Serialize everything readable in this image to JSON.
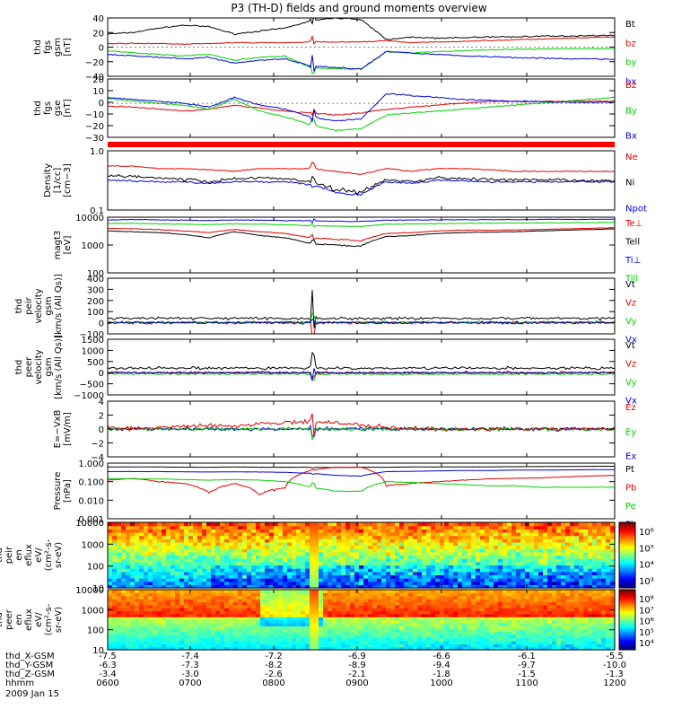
{
  "title": "P3 (TH-D) fields and ground moments overview",
  "ephemeris": {
    "rows": [
      {
        "label": "thd_X-GSM",
        "values": [
          "-7.5",
          "-7.4",
          "-7.2",
          "-6.9",
          "-6.6",
          "-6.1",
          "-5.5"
        ]
      },
      {
        "label": "thd_Y-GSM",
        "values": [
          "-6.3",
          "-7.3",
          "-8.2",
          "-8.9",
          "-9.4",
          "-9.7",
          "-10.0"
        ]
      },
      {
        "label": "thd_Z-GSM",
        "values": [
          "-3.4",
          "-3.0",
          "-2.6",
          "-2.1",
          "-1.8",
          "-1.5",
          "-1.3"
        ]
      },
      {
        "label": "hhmm",
        "values": [
          "0600",
          "0700",
          "0800",
          "0900",
          "1000",
          "1100",
          "1200"
        ]
      }
    ],
    "date": "2009 Jan 15"
  },
  "colors": {
    "black": "#000000",
    "red": "#e00000",
    "green": "#00d000",
    "blue": "#0000e0"
  },
  "chart_data": [
    {
      "type": "line",
      "ylabel_lines": [
        "thd",
        "fgs",
        "gsm",
        "[nT]"
      ],
      "ylim": [
        -40,
        40
      ],
      "y_ticks": [
        "40",
        "20",
        "0",
        "−20",
        "−40"
      ],
      "x_range_hhmm": [
        "0600",
        "1200"
      ],
      "series": [
        {
          "name": "Bt",
          "color": "#000000",
          "approx_values": [
            18,
            22,
            28,
            30,
            36,
            40,
            38,
            20,
            14,
            12,
            13,
            14,
            15,
            15,
            15,
            16,
            16
          ]
        },
        {
          "name": "bz",
          "color": "#e00000",
          "approx_values": [
            5,
            5,
            5,
            5,
            6,
            6,
            6,
            8,
            6,
            7,
            8,
            9,
            10,
            11,
            12,
            13,
            14
          ]
        },
        {
          "name": "by",
          "color": "#00d000",
          "approx_values": [
            -5,
            -8,
            -10,
            -12,
            -18,
            -28,
            -30,
            -5,
            -6,
            -5,
            -5,
            -4,
            -3,
            -3,
            -2,
            -2,
            -2
          ]
        },
        {
          "name": "bx",
          "color": "#0000e0",
          "approx_values": [
            -10,
            -12,
            -14,
            -16,
            -22,
            -26,
            -28,
            -6,
            -8,
            -10,
            -12,
            -13,
            -14,
            -15,
            -16,
            -16,
            -17
          ]
        }
      ],
      "legend": [
        {
          "text": "Bt",
          "color": "#000000"
        },
        {
          "text": "bz",
          "color": "#e00000"
        },
        {
          "text": "by",
          "color": "#00d000"
        },
        {
          "text": "bx",
          "color": "#0000e0"
        }
      ]
    },
    {
      "type": "line",
      "ylabel_lines": [
        "thd",
        "fgs",
        "gse",
        "[nT]"
      ],
      "ylim": [
        -35,
        25
      ],
      "y_ticks": [
        "20",
        "10",
        "0",
        "−10",
        "−20",
        "−30"
      ],
      "series": [
        {
          "name": "Bz",
          "color": "#e00000"
        },
        {
          "name": "By",
          "color": "#00d000"
        },
        {
          "name": "Bx",
          "color": "#0000e0"
        }
      ],
      "legend": [
        {
          "text": "Bz",
          "color": "#e00000"
        },
        {
          "text": "By",
          "color": "#00d000"
        },
        {
          "text": "Bx",
          "color": "#0000e0"
        }
      ]
    },
    {
      "type": "line",
      "ylabel_lines": [
        "Density",
        "[1/cc]",
        "[cm−3]"
      ],
      "scale": "log",
      "ylim": [
        0.1,
        1.0
      ],
      "y_ticks": [
        "1.0",
        "0.1"
      ],
      "series": [
        {
          "name": "Ne",
          "color": "#e00000"
        },
        {
          "name": "Ni",
          "color": "#000000"
        },
        {
          "name": "Npot",
          "color": "#0000e0"
        }
      ],
      "legend": [
        {
          "text": "Ne",
          "color": "#e00000"
        },
        {
          "text": "Ni",
          "color": "#000000"
        },
        {
          "text": "Npot",
          "color": "#0000e0"
        }
      ]
    },
    {
      "type": "line",
      "ylabel_lines": [
        "magt3",
        "[eV]"
      ],
      "scale": "log",
      "ylim": [
        100,
        10000
      ],
      "y_ticks": [
        "10000",
        "1000",
        "100"
      ],
      "series": [
        {
          "name": "Te⊥",
          "color": "#e00000"
        },
        {
          "name": "Te∥",
          "color": "#000000"
        },
        {
          "name": "Ti⊥",
          "color": "#0000e0"
        },
        {
          "name": "Ti∥",
          "color": "#00d000"
        }
      ],
      "legend": [
        {
          "text": "Te⊥",
          "color": "#e00000"
        },
        {
          "text": "Tell",
          "color": "#000000"
        },
        {
          "text": "Ti⊥",
          "color": "#0000e0"
        },
        {
          "text": "Till",
          "color": "#00d000"
        }
      ]
    },
    {
      "type": "line",
      "ylabel_lines": [
        "thd",
        "peir",
        "velocity",
        "gsm",
        "[km/s (All Qs)]"
      ],
      "ylim": [
        -100,
        400
      ],
      "y_ticks": [
        "400",
        "300",
        "200",
        "100",
        "0",
        "−100"
      ],
      "series": [
        {
          "name": "Vt",
          "color": "#000000"
        },
        {
          "name": "Vz",
          "color": "#e00000"
        },
        {
          "name": "Vy",
          "color": "#00d000"
        },
        {
          "name": "Vx",
          "color": "#0000e0"
        }
      ],
      "legend": [
        {
          "text": "Vt",
          "color": "#000000"
        },
        {
          "text": "Vz",
          "color": "#e00000"
        },
        {
          "text": "Vy",
          "color": "#00d000"
        },
        {
          "text": "Vx",
          "color": "#0000e0"
        }
      ]
    },
    {
      "type": "line",
      "ylabel_lines": [
        "thd",
        "peer",
        "velocity",
        "gsm",
        "[km/s (All Qs)]"
      ],
      "ylim": [
        -1000,
        1500
      ],
      "y_ticks": [
        "1500",
        "1000",
        "500",
        "0",
        "−500",
        "−1000"
      ],
      "series": [
        {
          "name": "Vt",
          "color": "#000000"
        },
        {
          "name": "Vz",
          "color": "#e00000"
        },
        {
          "name": "Vy",
          "color": "#00d000"
        },
        {
          "name": "Vx",
          "color": "#0000e0"
        }
      ],
      "legend": [
        {
          "text": "Vt",
          "color": "#000000"
        },
        {
          "text": "Vz",
          "color": "#e00000"
        },
        {
          "text": "Vy",
          "color": "#00d000"
        },
        {
          "text": "Vx",
          "color": "#0000e0"
        }
      ]
    },
    {
      "type": "line",
      "ylabel_lines": [
        "E=−VxB",
        "[mV/m]"
      ],
      "ylim": [
        -4,
        4
      ],
      "y_ticks": [
        "4",
        "2",
        "0",
        "−2",
        "−4"
      ],
      "series": [
        {
          "name": "Ez",
          "color": "#e00000"
        },
        {
          "name": "Ey",
          "color": "#00d000"
        },
        {
          "name": "Ex",
          "color": "#0000e0"
        }
      ],
      "legend": [
        {
          "text": "Ez",
          "color": "#e00000"
        },
        {
          "text": "Ey",
          "color": "#00d000"
        },
        {
          "text": "Ex",
          "color": "#0000e0"
        }
      ]
    },
    {
      "type": "line",
      "ylabel_lines": [
        "Pressure",
        "[nPa]"
      ],
      "scale": "log",
      "ylim": [
        0.001,
        1.0
      ],
      "y_ticks": [
        "1.000",
        "0.100",
        "0.010",
        "0.001"
      ],
      "series": [
        {
          "name": "Pt",
          "color": "#000000"
        },
        {
          "name": "Pb",
          "color": "#e00000"
        },
        {
          "name": "Pe",
          "color": "#00d000"
        },
        {
          "name": "Pi",
          "color": "#0000e0"
        }
      ],
      "legend": [
        {
          "text": "Pt",
          "color": "#000000"
        },
        {
          "text": "Pb",
          "color": "#e00000"
        },
        {
          "text": "Pe",
          "color": "#00d000"
        },
        {
          "text": "Pi",
          "color": "#0000e0"
        }
      ]
    },
    {
      "type": "heatmap",
      "ylabel_lines": [
        "thd",
        "peir",
        "en",
        "eflux",
        "eV/",
        "(cm²-s-",
        "sr-eV)"
      ],
      "scale": "log",
      "ylim": [
        10,
        10000
      ],
      "y_ticks": [
        "10000",
        "1000",
        "100",
        "10"
      ],
      "colorbar_ticks": [
        "10⁶",
        "10⁵",
        "10⁴",
        "10³"
      ]
    },
    {
      "type": "heatmap",
      "ylabel_lines": [
        "thd",
        "peer",
        "en",
        "eflux",
        "eV/",
        "(cm²-s-",
        "sr-eV)"
      ],
      "scale": "log",
      "ylim": [
        10,
        10000
      ],
      "y_ticks": [
        "10000",
        "1000",
        "100",
        "10"
      ],
      "colorbar_ticks": [
        "10⁸",
        "10⁷",
        "10⁶",
        "10⁵",
        "10⁴"
      ]
    }
  ]
}
